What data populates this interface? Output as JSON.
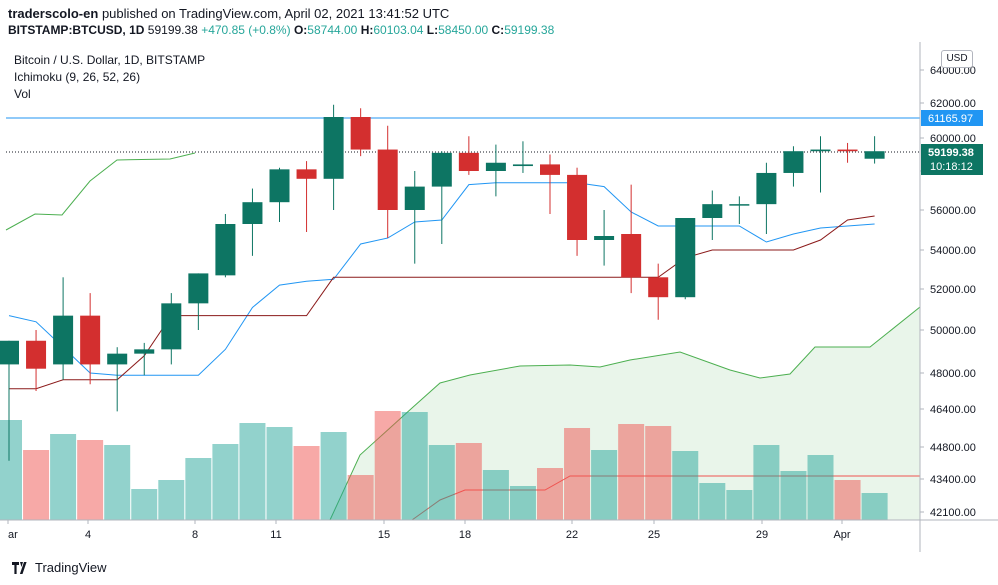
{
  "header": {
    "author": "traderscolo-en",
    "published_text": "published on TradingView.com, April 02, 2021 13:41:52 UTC",
    "symbol": "BITSTAMP:BTCUSD, 1D",
    "price": "59199.38",
    "change": "+470.85 (+0.8%)",
    "o_label": "O:",
    "o_value": "58744.00",
    "h_label": "H:",
    "h_value": "60103.04",
    "l_label": "L:",
    "l_value": "58450.00",
    "c_label": "C:",
    "c_value": "59199.38"
  },
  "legend": {
    "title": "Bitcoin / U.S. Dollar, 1D, BITSTAMP",
    "ichimoku": "Ichimoku (9, 26, 52, 26)",
    "vol": "Vol"
  },
  "currency_button": "USD",
  "price_badges": {
    "level_line": "61165.97",
    "last_price": "59199.38",
    "countdown": "10:18:12"
  },
  "footer": {
    "brand": "TradingView"
  },
  "colors": {
    "up": "#26a69a",
    "down": "#ef5350",
    "up_candle": "#0d7563",
    "down_candle": "#d32f2f",
    "tenkan": "#2196f3",
    "kijun": "#8b1a1a",
    "span": "#4caf50"
  },
  "chart_data": {
    "type": "candlestick",
    "y_axis_ticks": [
      "64000.00",
      "62000.00",
      "60000.00",
      "58000.00",
      "56000.00",
      "54000.00",
      "52000.00",
      "50000.00",
      "48000.00",
      "46400.00",
      "44800.00",
      "43400.00",
      "42100.00"
    ],
    "x_axis_ticks": [
      "ar",
      "4",
      "8",
      "11",
      "15",
      "18",
      "22",
      "25",
      "29",
      "Apr"
    ],
    "candles": [
      {
        "o": 48400,
        "h": 49500,
        "l": 44200,
        "c": 49500
      },
      {
        "o": 49500,
        "h": 50000,
        "l": 47200,
        "c": 48200
      },
      {
        "o": 48400,
        "h": 52600,
        "l": 47700,
        "c": 50700
      },
      {
        "o": 50700,
        "h": 51800,
        "l": 47500,
        "c": 48400
      },
      {
        "o": 48400,
        "h": 49200,
        "l": 46300,
        "c": 48900
      },
      {
        "o": 48900,
        "h": 49400,
        "l": 47900,
        "c": 49100
      },
      {
        "o": 49100,
        "h": 51800,
        "l": 48400,
        "c": 51300
      },
      {
        "o": 51300,
        "h": 52800,
        "l": 50000,
        "c": 52800
      },
      {
        "o": 52700,
        "h": 55800,
        "l": 52600,
        "c": 55300
      },
      {
        "o": 55300,
        "h": 57100,
        "l": 53700,
        "c": 56400
      },
      {
        "o": 56400,
        "h": 58200,
        "l": 55400,
        "c": 58100
      },
      {
        "o": 58100,
        "h": 58600,
        "l": 54900,
        "c": 57600
      },
      {
        "o": 57600,
        "h": 61900,
        "l": 56000,
        "c": 61200
      },
      {
        "o": 61200,
        "h": 61700,
        "l": 58900,
        "c": 59300
      },
      {
        "o": 59300,
        "h": 60700,
        "l": 54600,
        "c": 56000
      },
      {
        "o": 56000,
        "h": 58000,
        "l": 53300,
        "c": 57200
      },
      {
        "o": 57200,
        "h": 59200,
        "l": 54300,
        "c": 59100
      },
      {
        "o": 59100,
        "h": 60100,
        "l": 57800,
        "c": 58000
      },
      {
        "o": 58000,
        "h": 59600,
        "l": 56700,
        "c": 58500
      },
      {
        "o": 58300,
        "h": 59800,
        "l": 57900,
        "c": 58400
      },
      {
        "o": 58400,
        "h": 59000,
        "l": 55800,
        "c": 57800
      },
      {
        "o": 57800,
        "h": 58200,
        "l": 53700,
        "c": 54500
      },
      {
        "o": 54500,
        "h": 56000,
        "l": 53200,
        "c": 54700
      },
      {
        "o": 54800,
        "h": 57300,
        "l": 51800,
        "c": 52600
      },
      {
        "o": 52600,
        "h": 53300,
        "l": 50500,
        "c": 51600
      },
      {
        "o": 51600,
        "h": 55600,
        "l": 51500,
        "c": 55600
      },
      {
        "o": 55600,
        "h": 57000,
        "l": 54500,
        "c": 56300
      },
      {
        "o": 56300,
        "h": 56700,
        "l": 55300,
        "c": 56300
      },
      {
        "o": 56300,
        "h": 58500,
        "l": 54800,
        "c": 57900
      },
      {
        "o": 57900,
        "h": 59500,
        "l": 57200,
        "c": 59200
      },
      {
        "o": 59200,
        "h": 60100,
        "l": 56900,
        "c": 59300
      },
      {
        "o": 59300,
        "h": 59700,
        "l": 58500,
        "c": 59200
      },
      {
        "o": 58744,
        "h": 60103,
        "l": 58450,
        "c": 59199
      }
    ],
    "tenkan": [
      50700,
      50400,
      49200,
      48000,
      47900,
      47900,
      47900,
      47900,
      49100,
      51100,
      52200,
      52400,
      52500,
      54300,
      54600,
      55400,
      55500,
      57300,
      57400,
      57400,
      57400,
      57400,
      57200,
      55900,
      55200,
      55200,
      55200,
      55200,
      54400,
      54800,
      55100,
      55200,
      55300
    ],
    "kijun": [
      47300,
      47300,
      47700,
      47700,
      47700,
      48800,
      50700,
      50700,
      50700,
      50700,
      50700,
      50700,
      52600,
      52600,
      52600,
      52600,
      52600,
      52600,
      52600,
      52600,
      52600,
      52600,
      52600,
      52600,
      52600,
      53600,
      54000,
      54000,
      54000,
      54000,
      54500,
      55500,
      55700
    ]
  }
}
